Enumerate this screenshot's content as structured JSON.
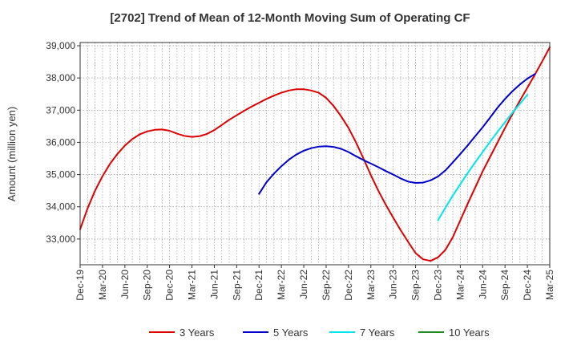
{
  "chart_data": {
    "type": "line",
    "title": "[2702]  Trend of Mean of 12-Month Moving Sum of Operating CF",
    "xlabel": "",
    "ylabel": "Amount (million yen)",
    "ylim": [
      32200,
      39100
    ],
    "grid": true,
    "legend_position": "bottom",
    "x_tick_labels": [
      "Dec-19",
      "Mar-20",
      "Jun-20",
      "Sep-20",
      "Dec-20",
      "Mar-21",
      "Jun-21",
      "Sep-21",
      "Dec-21",
      "Mar-22",
      "Jun-22",
      "Sep-22",
      "Dec-22",
      "Mar-23",
      "Jun-23",
      "Sep-23",
      "Dec-23",
      "Mar-24",
      "Jun-24",
      "Sep-24",
      "Dec-24",
      "Mar-25"
    ],
    "y_tick_labels": [
      "33,000",
      "34,000",
      "35,000",
      "36,000",
      "37,000",
      "38,000",
      "39,000"
    ],
    "y_tick_values": [
      33000,
      34000,
      35000,
      36000,
      37000,
      38000,
      39000
    ],
    "series": [
      {
        "name": "3 Years",
        "color": "#dd0000",
        "start_month_index": 0,
        "values": [
          33300,
          33950,
          34500,
          34950,
          35330,
          35640,
          35900,
          36100,
          36250,
          36340,
          36390,
          36400,
          36360,
          36270,
          36200,
          36170,
          36190,
          36260,
          36380,
          36540,
          36700,
          36840,
          36980,
          37110,
          37230,
          37350,
          37450,
          37540,
          37610,
          37650,
          37650,
          37610,
          37540,
          37380,
          37130,
          36810,
          36450,
          36000,
          35500,
          34980,
          34500,
          34060,
          33660,
          33270,
          32910,
          32560,
          32370,
          32320,
          32430,
          32660,
          33060,
          33580,
          34100,
          34600,
          35100,
          35550,
          36000,
          36450,
          36880,
          37300,
          37700,
          38100,
          38520,
          38950
        ]
      },
      {
        "name": "5 Years",
        "color": "#0000cc",
        "start_month_index": 24,
        "values": [
          34400,
          34760,
          35030,
          35260,
          35460,
          35620,
          35740,
          35820,
          35870,
          35880,
          35860,
          35800,
          35700,
          35570,
          35450,
          35340,
          35230,
          35110,
          35000,
          34880,
          34780,
          34740,
          34750,
          34820,
          34940,
          35130,
          35380,
          35640,
          35910,
          36190,
          36470,
          36770,
          37080,
          37350,
          37590,
          37800,
          37980,
          38120
        ]
      },
      {
        "name": "7 Years",
        "color": "#00e5ee",
        "start_month_index": 48,
        "values": [
          33580,
          33970,
          34350,
          34700,
          35050,
          35380,
          35700,
          36020,
          36330,
          36630,
          36920,
          37200,
          37480
        ]
      },
      {
        "name": "10 Years",
        "color": "#228822",
        "start_month_index": 0,
        "values": []
      }
    ]
  }
}
